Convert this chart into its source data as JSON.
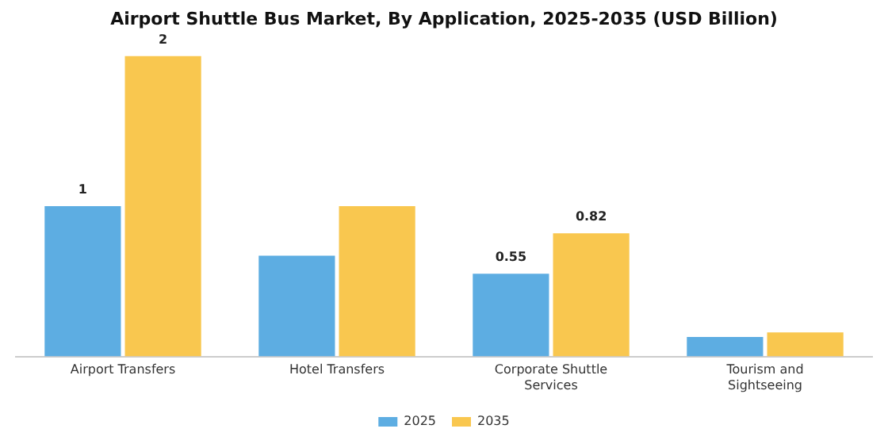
{
  "chart_data": {
    "type": "bar",
    "title": "Airport Shuttle Bus Market, By Application, 2025-2035 (USD Billion)",
    "categories": [
      "Airport Transfers",
      "Hotel Transfers",
      "Corporate Shuttle Services",
      "Tourism and Sightseeing"
    ],
    "series": [
      {
        "name": "2025",
        "color": "#5dade2",
        "values": [
          1,
          0.67,
          0.55,
          0.13
        ],
        "value_labels": [
          "1",
          null,
          "0.55",
          null
        ]
      },
      {
        "name": "2035",
        "color": "#f9c74f",
        "values": [
          2,
          1.0,
          0.82,
          0.16
        ],
        "value_labels": [
          "2",
          null,
          "0.82",
          null
        ]
      }
    ],
    "legend": "bottom",
    "grid": false
  }
}
